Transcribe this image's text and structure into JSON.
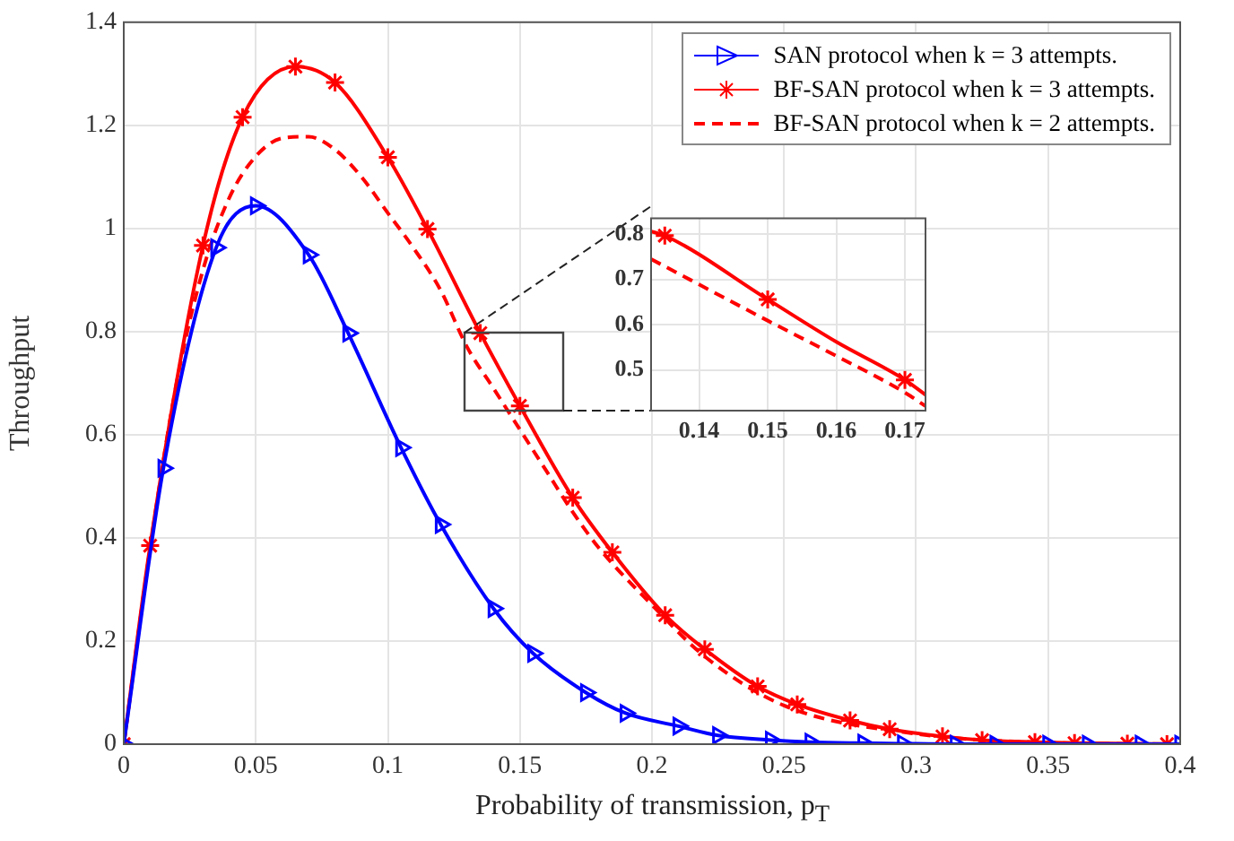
{
  "chart_data": [
    {
      "type": "line",
      "xlabel": "Probability of transmission, p$_{T}$",
      "ylabel": "Throughput",
      "xlim": [
        0,
        0.4
      ],
      "ylim": [
        0,
        1.4
      ],
      "xticks": [
        0,
        0.05,
        0.1,
        0.15,
        0.2,
        0.25,
        0.3,
        0.35,
        0.4
      ],
      "yticks": [
        0,
        0.2,
        0.4,
        0.6,
        0.8,
        1,
        1.2,
        1.4
      ],
      "grid": true,
      "legend": "top right",
      "series": [
        {
          "name": "SAN protocol when k = 3 attempts.",
          "color": "#0000ff",
          "marker": "triangle",
          "line_style": "solid",
          "x": [
            0,
            0.015,
            0.035,
            0.05,
            0.07,
            0.085,
            0.105,
            0.12,
            0.14,
            0.155,
            0.175,
            0.19,
            0.21,
            0.225,
            0.245,
            0.26,
            0.28,
            0.295,
            0.315,
            0.33,
            0.35,
            0.365,
            0.385,
            0.4
          ],
          "values": [
            0,
            0.535,
            0.963,
            1.044,
            0.949,
            0.797,
            0.575,
            0.426,
            0.263,
            0.176,
            0.1,
            0.06,
            0.035,
            0.017,
            0.008,
            0.004,
            0.002,
            0.001,
            0,
            0,
            0,
            0,
            0,
            0
          ]
        },
        {
          "name": "BF-SAN protocol when k = 3 attempts.",
          "color": "#ff0000",
          "marker": "cross",
          "line_style": "solid",
          "x": [
            0,
            0.01,
            0.03,
            0.045,
            0.065,
            0.08,
            0.1,
            0.115,
            0.135,
            0.15,
            0.17,
            0.185,
            0.205,
            0.22,
            0.24,
            0.255,
            0.275,
            0.29,
            0.31,
            0.325,
            0.345,
            0.36,
            0.38,
            0.395
          ],
          "values": [
            0,
            0.385,
            0.967,
            1.216,
            1.314,
            1.283,
            1.138,
            0.999,
            0.797,
            0.656,
            0.478,
            0.372,
            0.25,
            0.184,
            0.112,
            0.077,
            0.046,
            0.029,
            0.015,
            0.008,
            0.004,
            0.002,
            0.001,
            0
          ]
        },
        {
          "name": "BF-SAN protocol when k = 2 attempts.",
          "color": "#ff0000",
          "marker": "none",
          "line_style": "dashed",
          "x": [
            0,
            0.01,
            0.02,
            0.03,
            0.04,
            0.05,
            0.06,
            0.07,
            0.08,
            0.09,
            0.1,
            0.11,
            0.12,
            0.13,
            0.14,
            0.15,
            0.16,
            0.17,
            0.18,
            0.2,
            0.22,
            0.25,
            0.3,
            0.35,
            0.4
          ],
          "values": [
            0,
            0.38,
            0.7,
            0.92,
            1.06,
            1.14,
            1.175,
            1.178,
            1.153,
            1.1,
            1.03,
            0.96,
            0.88,
            0.77,
            0.69,
            0.61,
            0.53,
            0.45,
            0.38,
            0.27,
            0.17,
            0.075,
            0.02,
            0.003,
            0
          ]
        }
      ]
    },
    {
      "type": "line",
      "xlim": [
        0.133,
        0.173
      ],
      "ylim": [
        0.41,
        0.835
      ],
      "xticks": [
        0.14,
        0.15,
        0.16,
        0.17
      ],
      "yticks": [
        0.5,
        0.6,
        0.7,
        0.8
      ],
      "grid": true,
      "series": [
        {
          "color": "#ff0000",
          "marker": "none",
          "line_style": "solid",
          "x": [
            0.133,
            0.135,
            0.15,
            0.16,
            0.17,
            0.173
          ],
          "values": [
            0.806,
            0.797,
            0.656,
            0.562,
            0.478,
            0.445
          ]
        },
        {
          "type": "scatter",
          "color": "#ff0000",
          "marker": "cross",
          "x": [
            0.135,
            0.15,
            0.17
          ],
          "values": [
            0.797,
            0.656,
            0.478
          ]
        },
        {
          "color": "#ff0000",
          "marker": "none",
          "line_style": "dashed",
          "x": [
            0.133,
            0.15,
            0.16,
            0.17,
            0.173
          ],
          "values": [
            0.745,
            0.609,
            0.531,
            0.45,
            0.42
          ]
        }
      ]
    }
  ]
}
